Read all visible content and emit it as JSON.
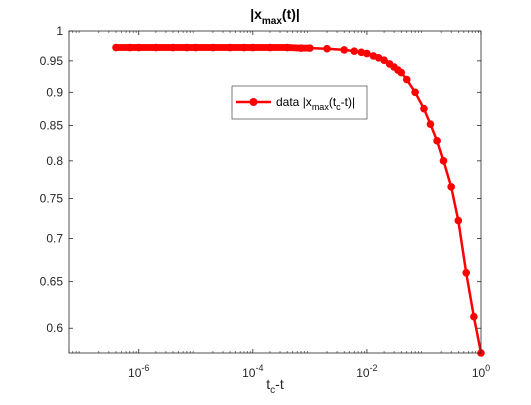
{
  "chart_data": {
    "type": "line",
    "title": "|x_max(t)|",
    "title_parts": {
      "pre": "|x",
      "sub": "max",
      "post": "(t)|"
    },
    "xlabel": "t_c-t",
    "xlabel_parts": {
      "pre": "t",
      "sub": "c",
      "post": "-t"
    },
    "ylabel": "",
    "xscale": "log",
    "yscale": "log",
    "xlim": [
      6e-08,
      1
    ],
    "ylim": [
      0.575,
      1
    ],
    "x_ticks": [
      {
        "value": 1e-06,
        "base": "10",
        "exp": "-6"
      },
      {
        "value": 0.0001,
        "base": "10",
        "exp": "-4"
      },
      {
        "value": 0.01,
        "base": "10",
        "exp": "-2"
      },
      {
        "value": 1,
        "base": "10",
        "exp": "0"
      }
    ],
    "y_ticks": [
      "1",
      "0.95",
      "0.9",
      "0.85",
      "0.8",
      "0.75",
      "0.7",
      "0.65",
      "0.6"
    ],
    "grid": false,
    "legend_position": "upper-middle",
    "series": [
      {
        "name": "data  |x_max(t_c-t)|",
        "name_parts": {
          "pre": "data  |x",
          "sub": "max",
          "post": "(t",
          "sub2": "c",
          "post2": "-t)|"
        },
        "color": "#ff0000",
        "marker": "circle",
        "x": [
          4e-07,
          7e-07,
          1e-06,
          2e-06,
          4e-06,
          7e-06,
          1e-05,
          2e-05,
          4e-05,
          7e-05,
          0.0001,
          0.0002,
          0.0004,
          0.0007,
          0.001,
          0.002,
          0.004,
          0.006,
          0.008,
          0.01,
          0.013,
          0.016,
          0.02,
          0.025,
          0.03,
          0.035,
          0.04,
          0.05,
          0.07,
          0.1,
          0.13,
          0.17,
          0.22,
          0.3,
          0.4,
          0.55,
          0.75,
          1.0
        ],
        "y": [
          0.972,
          0.972,
          0.972,
          0.972,
          0.972,
          0.972,
          0.972,
          0.972,
          0.972,
          0.972,
          0.972,
          0.972,
          0.972,
          0.971,
          0.971,
          0.97,
          0.968,
          0.966,
          0.964,
          0.962,
          0.958,
          0.955,
          0.951,
          0.945,
          0.94,
          0.935,
          0.931,
          0.92,
          0.9,
          0.875,
          0.852,
          0.828,
          0.8,
          0.765,
          0.722,
          0.66,
          0.612,
          0.575
        ]
      }
    ]
  }
}
